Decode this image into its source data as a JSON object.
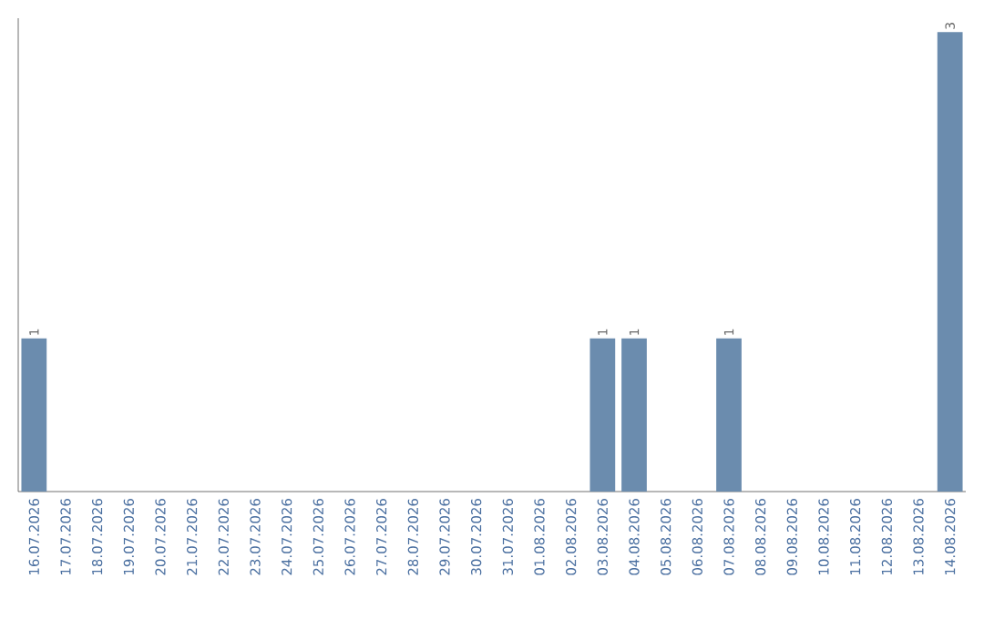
{
  "chart_data": {
    "type": "bar",
    "categories": [
      "16.07.2026",
      "17.07.2026",
      "18.07.2026",
      "19.07.2026",
      "20.07.2026",
      "21.07.2026",
      "22.07.2026",
      "23.07.2026",
      "24.07.2026",
      "25.07.2026",
      "26.07.2026",
      "27.07.2026",
      "28.07.2026",
      "29.07.2026",
      "30.07.2026",
      "31.07.2026",
      "01.08.2026",
      "02.08.2026",
      "03.08.2026",
      "04.08.2026",
      "05.08.2026",
      "06.08.2026",
      "07.08.2026",
      "08.08.2026",
      "09.08.2026",
      "10.08.2026",
      "11.08.2026",
      "12.08.2026",
      "13.08.2026",
      "14.08.2026"
    ],
    "values": [
      1,
      0,
      0,
      0,
      0,
      0,
      0,
      0,
      0,
      0,
      0,
      0,
      0,
      0,
      0,
      0,
      0,
      0,
      1,
      1,
      0,
      0,
      1,
      0,
      0,
      0,
      0,
      0,
      0,
      3
    ],
    "value_labels": [
      "1",
      null,
      null,
      null,
      null,
      null,
      null,
      null,
      null,
      null,
      null,
      null,
      null,
      null,
      null,
      null,
      null,
      null,
      "1",
      "1",
      null,
      null,
      "1",
      null,
      null,
      null,
      null,
      null,
      null,
      "3"
    ],
    "color": "#6b8cae"
  }
}
